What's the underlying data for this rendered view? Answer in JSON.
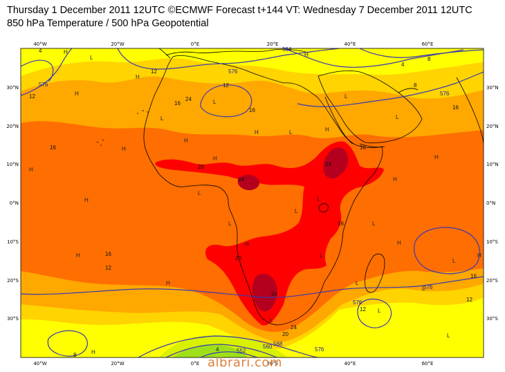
{
  "header": {
    "title_line1": "Thursday 1 December 2011 12UTC ©ECMWF Forecast t+144 VT: Wednesday 7 December 2011 12UTC",
    "title_line2": "850 hPa Temperature / 500 hPa Geopotential"
  },
  "colors": {
    "t_lt4": "#9fe01a",
    "t_4_8": "#d9f000",
    "t_8_12": "#ffff00",
    "t_12_16": "#ffd400",
    "t_16_20": "#ffa800",
    "t_20_24": "#ff6e00",
    "t_24_28": "#ff0000",
    "t_gt28": "#b4001e",
    "geopotential_line": "#3a3ab0",
    "coastline": "#000000"
  },
  "axes": {
    "lon_top": [
      "40°W",
      "20°W",
      "0°E",
      "20°E",
      "40°E",
      "60°E"
    ],
    "lon_bottom": [
      "40°W",
      "20°W",
      "0°E",
      "20°E",
      "40°E",
      "60°E"
    ],
    "lat_left": [
      "30°N",
      "20°N",
      "10°N",
      "0°N",
      "10°S",
      "20°S",
      "30°S"
    ],
    "lat_right": [
      "30°N",
      "20°N",
      "10°N",
      "0°N",
      "10°S",
      "20°S",
      "30°S"
    ]
  },
  "contour_labels": {
    "geopotential": [
      "576",
      "576",
      "576",
      "576",
      "576",
      "576",
      "568",
      "584",
      "552",
      "560"
    ],
    "temperature": [
      "4",
      "4",
      "4",
      "8",
      "8",
      "8",
      "12",
      "12",
      "12",
      "12",
      "12",
      "12",
      "16",
      "16",
      "16",
      "16",
      "16",
      "16",
      "16",
      "16",
      "20",
      "20",
      "20",
      "24",
      "24",
      "24",
      "24",
      "24"
    ]
  },
  "pressure_centers": [
    "H",
    "H",
    "H",
    "H",
    "H",
    "H",
    "H",
    "H",
    "H",
    "H",
    "H",
    "H",
    "H",
    "H",
    "H",
    "H",
    "H",
    "H",
    "H",
    "L",
    "L",
    "L",
    "L",
    "L",
    "L",
    "L",
    "L",
    "L",
    "L",
    "L",
    "L",
    "L",
    "L",
    "L",
    "L",
    "L",
    "L"
  ],
  "watermark": "albrari.com"
}
